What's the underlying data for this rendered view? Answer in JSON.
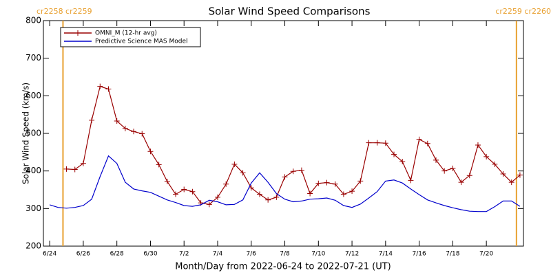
{
  "chart_data": {
    "type": "line",
    "title": "Solar Wind Speed Comparisons",
    "x_label": "Month/Day from 2022-06-24 to 2022-07-21 (UT)",
    "y_label": "Solar Wind Speed (km/s)",
    "xlim": [
      "2022-06-23T15:00",
      "2022-07-22T05:00"
    ],
    "xticks": [
      {
        "value": "2022-06-24T00:00",
        "label": "6/24"
      },
      {
        "value": "2022-06-26T00:00",
        "label": "6/26"
      },
      {
        "value": "2022-06-28T00:00",
        "label": "6/28"
      },
      {
        "value": "2022-06-30T00:00",
        "label": "6/30"
      },
      {
        "value": "2022-07-02T00:00",
        "label": "7/2"
      },
      {
        "value": "2022-07-04T00:00",
        "label": "7/4"
      },
      {
        "value": "2022-07-06T00:00",
        "label": "7/6"
      },
      {
        "value": "2022-07-08T00:00",
        "label": "7/8"
      },
      {
        "value": "2022-07-10T00:00",
        "label": "7/10"
      },
      {
        "value": "2022-07-12T00:00",
        "label": "7/12"
      },
      {
        "value": "2022-07-14T00:00",
        "label": "7/14"
      },
      {
        "value": "2022-07-16T00:00",
        "label": "7/16"
      },
      {
        "value": "2022-07-18T00:00",
        "label": "7/18"
      },
      {
        "value": "2022-07-20T00:00",
        "label": "7/20"
      }
    ],
    "ylim": [
      200,
      800
    ],
    "yticks": [
      200,
      300,
      400,
      500,
      600,
      700,
      800
    ],
    "legend": "upper left",
    "annotations": [
      {
        "x": "2022-06-24T19:00",
        "text": "cr2258 cr2259",
        "color": "#e8a030"
      },
      {
        "x": "2022-07-21T19:00",
        "text": "cr2259 cr2260",
        "color": "#e8a030"
      }
    ],
    "series": [
      {
        "name": "OMNI_M (12-hr avg)",
        "color": "#990000",
        "marker": "+",
        "x": [
          "2022-06-25T00:00",
          "2022-06-25T12:00",
          "2022-06-26T00:00",
          "2022-06-26T12:00",
          "2022-06-27T00:00",
          "2022-06-27T12:00",
          "2022-06-28T00:00",
          "2022-06-28T12:00",
          "2022-06-29T00:00",
          "2022-06-29T12:00",
          "2022-06-30T00:00",
          "2022-06-30T12:00",
          "2022-07-01T00:00",
          "2022-07-01T12:00",
          "2022-07-02T00:00",
          "2022-07-02T12:00",
          "2022-07-03T00:00",
          "2022-07-03T12:00",
          "2022-07-04T00:00",
          "2022-07-04T12:00",
          "2022-07-05T00:00",
          "2022-07-05T12:00",
          "2022-07-06T00:00",
          "2022-07-06T12:00",
          "2022-07-07T00:00",
          "2022-07-07T12:00",
          "2022-07-08T00:00",
          "2022-07-08T12:00",
          "2022-07-09T00:00",
          "2022-07-09T12:00",
          "2022-07-10T00:00",
          "2022-07-10T12:00",
          "2022-07-11T00:00",
          "2022-07-11T12:00",
          "2022-07-12T00:00",
          "2022-07-12T12:00",
          "2022-07-13T00:00",
          "2022-07-13T12:00",
          "2022-07-14T00:00",
          "2022-07-14T12:00",
          "2022-07-15T00:00",
          "2022-07-15T12:00",
          "2022-07-16T00:00",
          "2022-07-16T12:00",
          "2022-07-17T00:00",
          "2022-07-17T12:00",
          "2022-07-18T00:00",
          "2022-07-18T12:00",
          "2022-07-19T00:00",
          "2022-07-19T12:00",
          "2022-07-20T00:00",
          "2022-07-20T12:00",
          "2022-07-21T00:00",
          "2022-07-21T12:00",
          "2022-07-22T00:00"
        ],
        "values": [
          405,
          404,
          420,
          535,
          625,
          618,
          533,
          513,
          505,
          499,
          452,
          417,
          372,
          338,
          351,
          345,
          315,
          311,
          330,
          365,
          418,
          395,
          355,
          338,
          323,
          330,
          384,
          399,
          402,
          340,
          367,
          369,
          365,
          338,
          346,
          373,
          475,
          475,
          474,
          444,
          425,
          375,
          484,
          473,
          429,
          400,
          407,
          370,
          388,
          469,
          438,
          418,
          392,
          370,
          389
        ]
      },
      {
        "name": "Predictive Science MAS Model",
        "color": "#0000cc",
        "x": [
          "2022-06-24T00:00",
          "2022-06-24T12:00",
          "2022-06-25T00:00",
          "2022-06-25T12:00",
          "2022-06-26T00:00",
          "2022-06-26T12:00",
          "2022-06-27T00:00",
          "2022-06-27T12:00",
          "2022-06-28T00:00",
          "2022-06-28T12:00",
          "2022-06-29T00:00",
          "2022-06-29T12:00",
          "2022-06-30T00:00",
          "2022-06-30T12:00",
          "2022-07-01T00:00",
          "2022-07-01T12:00",
          "2022-07-02T00:00",
          "2022-07-02T12:00",
          "2022-07-03T00:00",
          "2022-07-03T12:00",
          "2022-07-04T00:00",
          "2022-07-04T12:00",
          "2022-07-05T00:00",
          "2022-07-05T12:00",
          "2022-07-06T00:00",
          "2022-07-06T12:00",
          "2022-07-07T00:00",
          "2022-07-07T12:00",
          "2022-07-08T00:00",
          "2022-07-08T12:00",
          "2022-07-09T00:00",
          "2022-07-09T12:00",
          "2022-07-10T00:00",
          "2022-07-10T12:00",
          "2022-07-11T00:00",
          "2022-07-11T12:00",
          "2022-07-12T00:00",
          "2022-07-12T12:00",
          "2022-07-13T00:00",
          "2022-07-13T12:00",
          "2022-07-14T00:00",
          "2022-07-14T12:00",
          "2022-07-15T00:00",
          "2022-07-15T12:00",
          "2022-07-16T00:00",
          "2022-07-16T12:00",
          "2022-07-17T00:00",
          "2022-07-17T12:00",
          "2022-07-18T00:00",
          "2022-07-18T12:00",
          "2022-07-19T00:00",
          "2022-07-19T12:00",
          "2022-07-20T00:00",
          "2022-07-20T12:00",
          "2022-07-21T00:00",
          "2022-07-21T12:00",
          "2022-07-22T00:00"
        ],
        "values": [
          310,
          303,
          301,
          303,
          308,
          325,
          385,
          440,
          420,
          370,
          352,
          347,
          343,
          333,
          323,
          316,
          308,
          306,
          310,
          322,
          318,
          310,
          311,
          323,
          368,
          395,
          370,
          340,
          325,
          318,
          320,
          325,
          326,
          328,
          322,
          308,
          303,
          312,
          328,
          345,
          373,
          376,
          368,
          352,
          337,
          323,
          315,
          308,
          302,
          297,
          293,
          292,
          292,
          305,
          320,
          320,
          306
        ]
      }
    ]
  }
}
